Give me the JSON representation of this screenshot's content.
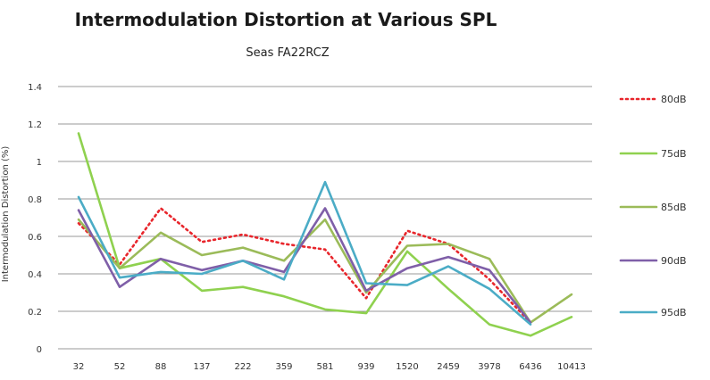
{
  "chart_data": {
    "type": "line",
    "title": "Intermodulation Distortion at Various SPL",
    "subtitle": "Seas FA22RCZ",
    "xlabel": "",
    "ylabel": "Intermodulation Distortion (%)",
    "ylim": [
      0,
      1.4
    ],
    "yticks": [
      0,
      0.2,
      0.4,
      0.6,
      0.8,
      1,
      1.2,
      1.4
    ],
    "ytick_labels": [
      "0",
      "0.2",
      "0.4",
      "0.6",
      "0.8",
      "1",
      "1.2",
      "1.4"
    ],
    "grid": true,
    "legend_position": "right",
    "categories": [
      "32",
      "52",
      "88",
      "137",
      "222",
      "359",
      "581",
      "939",
      "1520",
      "2459",
      "3978",
      "6436",
      "10413"
    ],
    "series": [
      {
        "name": "80dB",
        "color": "#e8262c",
        "dashed": true,
        "values": [
          0.67,
          0.45,
          0.75,
          0.57,
          0.61,
          0.56,
          0.53,
          0.27,
          0.63,
          0.56,
          0.37,
          0.14,
          null
        ]
      },
      {
        "name": "75dB",
        "color": "#8fd14f",
        "dashed": false,
        "values": [
          1.15,
          0.43,
          0.48,
          0.31,
          0.33,
          0.28,
          0.21,
          0.19,
          0.52,
          0.32,
          0.13,
          0.07,
          0.17
        ]
      },
      {
        "name": "85dB",
        "color": "#9bbb59",
        "dashed": false,
        "values": [
          0.69,
          0.43,
          0.62,
          0.5,
          0.54,
          0.47,
          0.69,
          0.3,
          0.55,
          0.56,
          0.48,
          0.14,
          0.29
        ]
      },
      {
        "name": "90dB",
        "color": "#7f5fa8",
        "dashed": false,
        "values": [
          0.74,
          0.33,
          0.48,
          0.42,
          0.47,
          0.41,
          0.75,
          0.31,
          0.43,
          0.49,
          0.42,
          0.14,
          null
        ]
      },
      {
        "name": "95dB",
        "color": "#4bacc6",
        "dashed": false,
        "values": [
          0.81,
          0.38,
          0.41,
          0.4,
          0.47,
          0.37,
          0.89,
          0.35,
          0.34,
          0.44,
          0.32,
          0.13,
          null
        ]
      }
    ]
  }
}
